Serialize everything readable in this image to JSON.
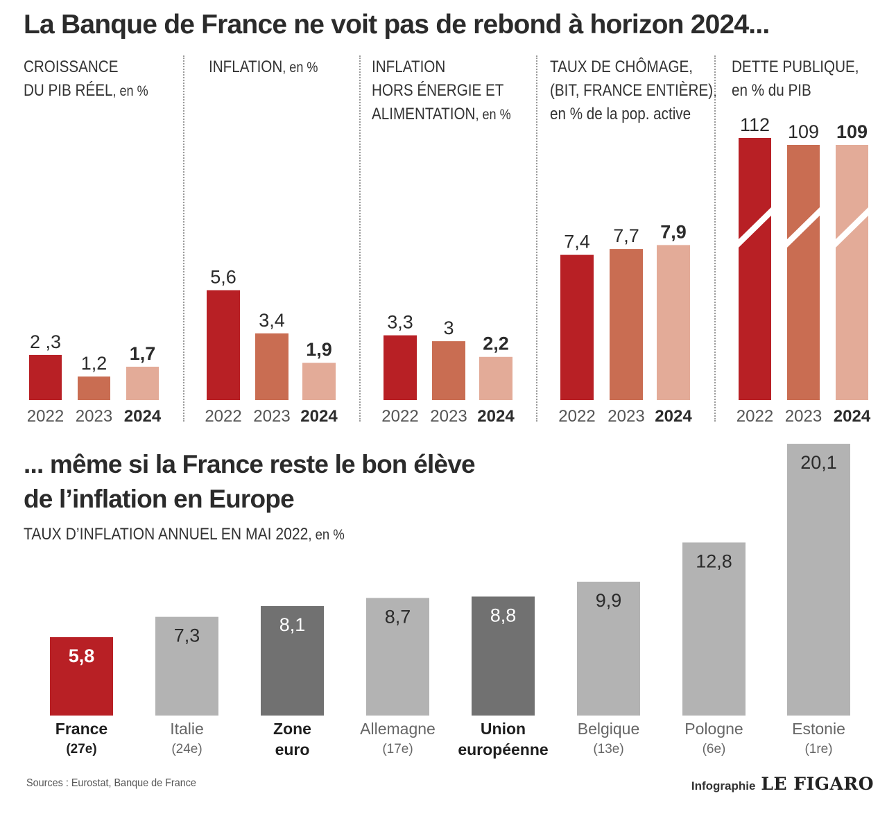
{
  "titles": {
    "main": "La Banque de France ne voit pas de rebond à horizon 2024...",
    "second_line1": "... même si la France reste le bon élève",
    "second_line2": "de l’inflation en Europe"
  },
  "panels": [
    {
      "label_lines": [
        "CROISSANCE",
        "DU PIB RÉEL"
      ],
      "unit": ", en %"
    },
    {
      "label_lines": [
        "INFLATION"
      ],
      "unit": ", en %"
    },
    {
      "label_lines": [
        "INFLATION",
        "HORS ÉNERGIE ET",
        "ALIMENTATION"
      ],
      "unit": ", en %"
    },
    {
      "label_lines": [
        "TAUX DE CHÔMAGE,",
        "(BIT, FRANCE ENTIÈRE),",
        "en % de la pop. active"
      ],
      "unit": ""
    },
    {
      "label_lines": [
        "DETTE PUBLIQUE,",
        "en % du PIB"
      ],
      "unit": ""
    }
  ],
  "bar_chart_label": {
    "text": "TAUX D’INFLATION ANNUEL EN MAI 2022",
    "unit": ", en %"
  },
  "countries": [
    {
      "name_lines": [
        "France"
      ],
      "rank": "(27e)"
    },
    {
      "name_lines": [
        "Italie"
      ],
      "rank": "(24e)"
    },
    {
      "name_lines": [
        "Zone",
        "euro"
      ],
      "rank": ""
    },
    {
      "name_lines": [
        "Allemagne"
      ],
      "rank": "(17e)"
    },
    {
      "name_lines": [
        "Union",
        "européenne"
      ],
      "rank": ""
    },
    {
      "name_lines": [
        "Belgique"
      ],
      "rank": "(13e)"
    },
    {
      "name_lines": [
        "Pologne"
      ],
      "rank": "(6e)"
    },
    {
      "name_lines": [
        "Estonie"
      ],
      "rank": "(1re)"
    }
  ],
  "footer": {
    "source": "Sources : Eurostat, Banque de France",
    "credit": "Infographie",
    "logo": "LE FIGARO"
  },
  "colors": {
    "y2022": "#b82025",
    "y2023": "#c96d52",
    "y2024": "#e3ab98",
    "france": "#b82025",
    "aggregate": "#717171",
    "country": "#b3b3b3"
  },
  "chart_data": [
    {
      "type": "bar",
      "title": "CROISSANCE DU PIB RÉEL, en %",
      "categories": [
        "2022",
        "2023",
        "2024"
      ],
      "values": [
        2.3,
        1.2,
        1.7
      ],
      "value_labels": [
        "2 ,3",
        "1,2",
        "1,7"
      ]
    },
    {
      "type": "bar",
      "title": "INFLATION, en %",
      "categories": [
        "2022",
        "2023",
        "2024"
      ],
      "values": [
        5.6,
        3.4,
        1.9
      ],
      "value_labels": [
        "5,6",
        "3,4",
        "1,9"
      ]
    },
    {
      "type": "bar",
      "title": "INFLATION HORS ÉNERGIE ET ALIMENTATION, en %",
      "categories": [
        "2022",
        "2023",
        "2024"
      ],
      "values": [
        3.3,
        3,
        2.2
      ],
      "value_labels": [
        "3,3",
        "3",
        "2,2"
      ]
    },
    {
      "type": "bar",
      "title": "TAUX DE CHÔMAGE, (BIT, FRANCE ENTIÈRE), en % de la pop. active",
      "categories": [
        "2022",
        "2023",
        "2024"
      ],
      "values": [
        7.4,
        7.7,
        7.9
      ],
      "value_labels": [
        "7,4",
        "7,7",
        "7,9"
      ]
    },
    {
      "type": "bar",
      "title": "DETTE PUBLIQUE, en % du PIB",
      "categories": [
        "2022",
        "2023",
        "2024"
      ],
      "values": [
        112,
        109,
        109
      ],
      "value_labels": [
        "112",
        "109",
        "109"
      ],
      "axis_break": true
    },
    {
      "type": "bar",
      "title": "TAUX D’INFLATION ANNUEL EN MAI 2022, en %",
      "categories": [
        "France",
        "Italie",
        "Zone euro",
        "Allemagne",
        "Union européenne",
        "Belgique",
        "Pologne",
        "Estonie"
      ],
      "values": [
        5.8,
        7.3,
        8.1,
        8.7,
        8.8,
        9.9,
        12.8,
        20.1
      ],
      "value_labels": [
        "5,8",
        "7,3",
        "8,1",
        "8,7",
        "8,8",
        "9,9",
        "12,8",
        "20,1"
      ]
    }
  ]
}
